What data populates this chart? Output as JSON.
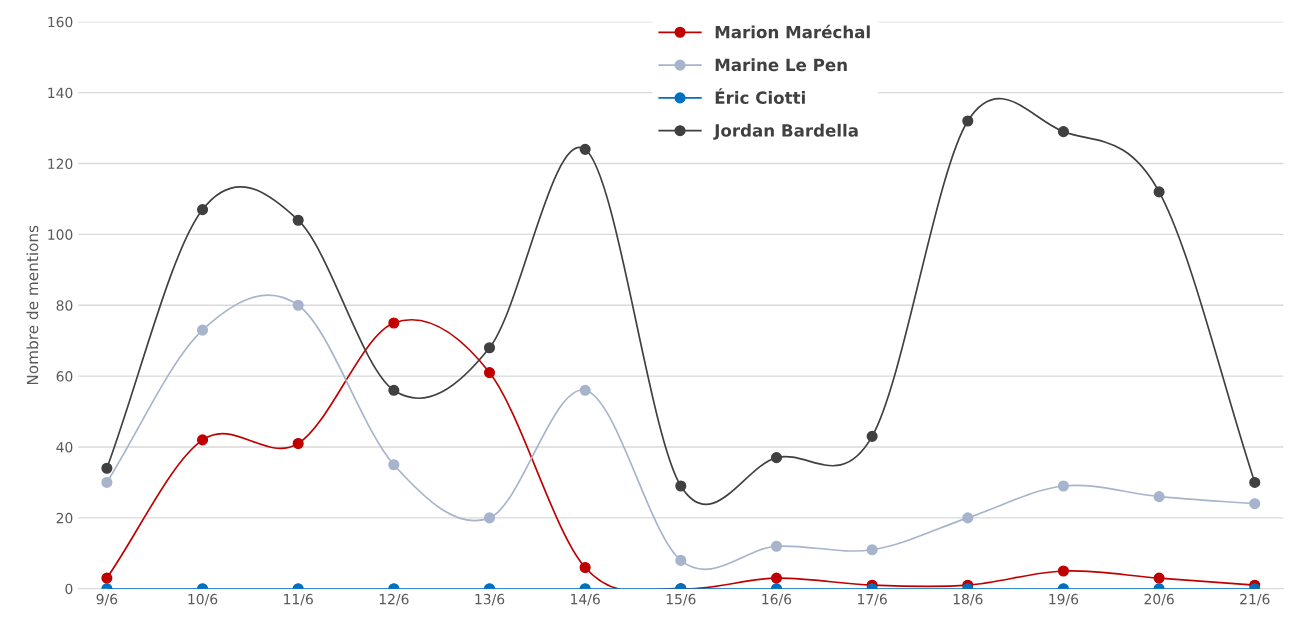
{
  "chart_data": {
    "type": "line",
    "ylabel": "Nombre de mentions",
    "categories": [
      "9/6",
      "10/6",
      "11/6",
      "12/6",
      "13/6",
      "14/6",
      "15/6",
      "16/6",
      "17/6",
      "18/6",
      "19/6",
      "20/6",
      "21/6"
    ],
    "series": [
      {
        "name": "Marion Maréchal",
        "color": "#c00000",
        "values": [
          3,
          42,
          41,
          75,
          61,
          6,
          0,
          3,
          1,
          1,
          5,
          3,
          1
        ]
      },
      {
        "name": "Marine Le Pen",
        "color": "#a6b4cc",
        "values": [
          30,
          73,
          80,
          35,
          20,
          56,
          8,
          12,
          11,
          20,
          29,
          26,
          24
        ]
      },
      {
        "name": "Éric Ciotti",
        "color": "#0070c0",
        "values": [
          0,
          0,
          0,
          0,
          0,
          0,
          0,
          0,
          0,
          0,
          0,
          0,
          0
        ]
      },
      {
        "name": "Jordan Bardella",
        "color": "#404040",
        "values": [
          34,
          107,
          104,
          56,
          68,
          124,
          29,
          37,
          43,
          132,
          129,
          112,
          30
        ]
      }
    ],
    "ylim": [
      0,
      160
    ],
    "yticks": [
      0,
      20,
      40,
      60,
      80,
      100,
      120,
      140,
      160
    ],
    "grid": "y",
    "legend": "top",
    "marker": "circle",
    "line_style": "solid"
  }
}
